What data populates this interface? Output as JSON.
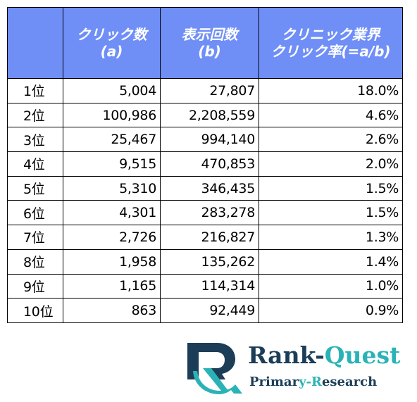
{
  "table": {
    "headers": [
      {
        "line1": "",
        "line2": ""
      },
      {
        "line1": "クリック数",
        "line2": "(a)"
      },
      {
        "line1": "表示回数",
        "line2": "(b)"
      },
      {
        "line1": "クリニック業界",
        "line2": "クリック率(=a/b)"
      }
    ],
    "rows": [
      {
        "rank": "1位",
        "clicks": "5,004",
        "impressions": "27,807",
        "ctr": "18.0%"
      },
      {
        "rank": "2位",
        "clicks": "100,986",
        "impressions": "2,208,559",
        "ctr": "4.6%"
      },
      {
        "rank": "3位",
        "clicks": "25,467",
        "impressions": "994,140",
        "ctr": "2.6%"
      },
      {
        "rank": "4位",
        "clicks": "9,515",
        "impressions": "470,853",
        "ctr": "2.0%"
      },
      {
        "rank": "5位",
        "clicks": "5,310",
        "impressions": "346,435",
        "ctr": "1.5%"
      },
      {
        "rank": "6位",
        "clicks": "4,301",
        "impressions": "283,278",
        "ctr": "1.5%"
      },
      {
        "rank": "7位",
        "clicks": "2,726",
        "impressions": "216,827",
        "ctr": "1.3%"
      },
      {
        "rank": "8位",
        "clicks": "1,958",
        "impressions": "135,262",
        "ctr": "1.4%"
      },
      {
        "rank": "9位",
        "clicks": "1,165",
        "impressions": "114,314",
        "ctr": "1.0%"
      },
      {
        "rank": "10位",
        "clicks": "863",
        "impressions": "92,449",
        "ctr": "0.9%"
      }
    ],
    "header_color": "#6f8ff7",
    "header_text_color": "#ffffff"
  },
  "logo": {
    "brand_part1": "Rank-",
    "brand_part2": "Quest",
    "tagline_part1": "Primar",
    "tagline_part2": "y-R",
    "tagline_part3": "esearch",
    "primary_color": "#1c3d57",
    "accent_color": "#2ab3b6",
    "icon": "rq-monogram-icon"
  }
}
